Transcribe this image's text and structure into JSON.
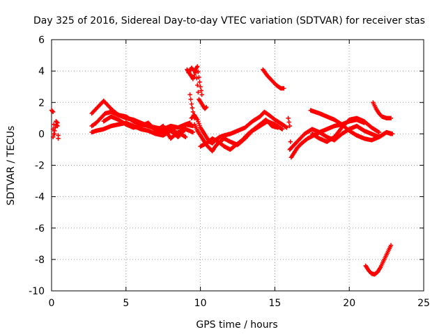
{
  "chart_data": {
    "type": "scatter",
    "title": "Day 325 of 2016, Sidereal Day-to-day VTEC variation (SDTVAR) for receiver stas",
    "xlabel": "GPS time / hours",
    "ylabel": "SDTVAR / TECUs",
    "xlim": [
      0,
      25
    ],
    "ylim": [
      -10,
      6
    ],
    "xticks": [
      0,
      5,
      10,
      15,
      20,
      25
    ],
    "yticks": [
      -10,
      -8,
      -6,
      -4,
      -2,
      0,
      2,
      4,
      6
    ],
    "xtick_labels": [
      "0",
      "5",
      "10",
      "15",
      "20",
      "25"
    ],
    "ytick_labels": [
      "-10",
      "-8",
      "-6",
      "-4",
      "-2",
      "0",
      "2",
      "4",
      "6"
    ],
    "grid": true,
    "marker": "plus",
    "color": "#ff0000",
    "series": [
      {
        "name": "s1",
        "x": [
          0.0,
          0.05,
          0.1
        ],
        "y": [
          1.5,
          1.45,
          1.4
        ]
      },
      {
        "name": "s2",
        "x": [
          0.1,
          0.15,
          0.2,
          0.3,
          0.4,
          0.45
        ],
        "y": [
          0.3,
          0.6,
          0.0,
          0.8,
          0.7,
          -0.3
        ]
      },
      {
        "name": "s3",
        "x": [
          0.1,
          0.2,
          0.3,
          0.4,
          0.45
        ],
        "y": [
          -0.2,
          0.2,
          0.6,
          0.5,
          -0.1
        ]
      },
      {
        "name": "s4",
        "x": [
          2.7,
          3.0,
          3.3,
          3.5,
          3.8,
          4.1,
          4.5,
          5.0,
          5.5,
          6.0,
          6.5,
          7.0,
          7.5,
          8.0,
          8.5,
          9.0,
          9.3
        ],
        "y": [
          1.3,
          1.6,
          1.9,
          2.1,
          1.8,
          1.5,
          1.2,
          1.0,
          0.9,
          0.7,
          0.5,
          0.4,
          0.3,
          0.5,
          0.4,
          0.6,
          0.7
        ]
      },
      {
        "name": "s5",
        "x": [
          2.7,
          3.0,
          3.3,
          3.6,
          4.0,
          4.5,
          5.0,
          5.5,
          6.0,
          6.5,
          7.0,
          7.5,
          8.0,
          8.5,
          9.0,
          9.5
        ],
        "y": [
          0.5,
          0.7,
          1.0,
          1.3,
          1.4,
          1.2,
          1.1,
          0.8,
          0.6,
          0.5,
          0.3,
          0.1,
          0.4,
          0.0,
          0.6,
          0.5
        ]
      },
      {
        "name": "s6",
        "x": [
          2.7,
          3.0,
          3.5,
          4.0,
          4.5,
          5.0,
          5.5,
          6.0,
          6.5,
          7.0,
          7.5,
          8.0,
          8.5,
          9.0,
          9.5
        ],
        "y": [
          0.1,
          0.2,
          0.3,
          0.5,
          0.6,
          0.7,
          0.5,
          0.3,
          0.2,
          0.0,
          -0.1,
          0.2,
          -0.2,
          0.3,
          0.1
        ]
      },
      {
        "name": "s7",
        "x": [
          3.5,
          4.0,
          4.5,
          5.0,
          5.5,
          6.0,
          6.5,
          7.0,
          7.5,
          8.0,
          8.5,
          9.0
        ],
        "y": [
          0.8,
          1.1,
          0.9,
          0.6,
          0.4,
          0.5,
          0.7,
          0.2,
          0.5,
          -0.3,
          0.1,
          -0.2
        ]
      },
      {
        "name": "s8",
        "x": [
          9.2,
          9.4,
          9.6,
          9.8,
          9.9,
          10.0,
          10.1
        ],
        "y": [
          3.9,
          4.2,
          4.0,
          4.3,
          3.6,
          3.0,
          2.5
        ]
      },
      {
        "name": "s9",
        "x": [
          9.1,
          9.3,
          9.5,
          9.7,
          9.9,
          10.1,
          10.3,
          10.4
        ],
        "y": [
          4.1,
          3.8,
          3.5,
          4.0,
          2.2,
          1.9,
          1.6,
          1.7
        ]
      },
      {
        "name": "s10",
        "x": [
          9.3,
          9.4,
          9.5,
          9.6
        ],
        "y": [
          2.5,
          1.9,
          1.4,
          1.0
        ]
      },
      {
        "name": "s11",
        "x": [
          9.4,
          9.6,
          9.8,
          10.0,
          10.2,
          10.4,
          10.6,
          10.8,
          11.0,
          11.3,
          11.6,
          12.0,
          12.5,
          13.0,
          13.5,
          14.0,
          14.3,
          14.6,
          15.0,
          15.5,
          15.8
        ],
        "y": [
          1.0,
          1.2,
          0.9,
          0.4,
          0.1,
          -0.2,
          -0.5,
          -0.6,
          -0.4,
          -0.2,
          -0.1,
          0.0,
          0.2,
          0.4,
          0.8,
          1.1,
          1.4,
          1.2,
          0.9,
          0.6,
          0.4
        ]
      },
      {
        "name": "s12",
        "x": [
          9.6,
          9.8,
          10.0,
          10.2,
          10.4,
          10.6,
          10.8,
          11.0,
          11.3,
          11.6,
          12.0,
          12.5,
          13.0,
          13.5,
          14.0,
          14.5,
          15.0,
          15.5
        ],
        "y": [
          0.6,
          0.2,
          -0.1,
          -0.4,
          -0.7,
          -0.9,
          -1.1,
          -0.8,
          -0.5,
          -0.3,
          -0.5,
          -0.7,
          -0.3,
          0.2,
          0.5,
          0.8,
          0.6,
          0.3
        ]
      },
      {
        "name": "s13",
        "x": [
          10.0,
          10.4,
          10.8,
          11.2,
          11.6,
          12.0,
          12.4,
          12.8,
          13.2,
          13.6,
          14.0,
          14.4,
          14.8,
          15.2
        ],
        "y": [
          -0.8,
          -0.6,
          -0.3,
          -0.5,
          -0.8,
          -1.0,
          -0.7,
          -0.4,
          0.0,
          0.3,
          0.6,
          0.9,
          0.5,
          0.4
        ]
      },
      {
        "name": "s14",
        "x": [
          14.2,
          14.5,
          14.8,
          15.1,
          15.4,
          15.6
        ],
        "y": [
          4.1,
          3.7,
          3.4,
          3.1,
          2.9,
          2.9
        ]
      },
      {
        "name": "s15",
        "x": [
          15.9,
          16.0,
          16.1,
          16.3,
          16.5,
          16.8,
          17.2,
          17.6,
          18.0,
          18.5,
          19.0,
          19.5,
          20.0,
          20.5,
          21.0
        ],
        "y": [
          1.0,
          0.5,
          -1.5,
          -1.2,
          -0.9,
          -0.6,
          -0.3,
          -0.1,
          0.1,
          0.3,
          0.5,
          0.6,
          0.8,
          0.9,
          0.7
        ]
      },
      {
        "name": "s16",
        "x": [
          16.0,
          16.2,
          16.5,
          17.0,
          17.5,
          18.0,
          18.5,
          19.0,
          19.5,
          20.0,
          20.5,
          21.0,
          21.5,
          22.0,
          22.5,
          22.8
        ],
        "y": [
          -1.0,
          -0.8,
          -0.5,
          0.0,
          0.3,
          0.1,
          -0.2,
          -0.4,
          0.0,
          0.3,
          0.5,
          0.2,
          0.0,
          -0.2,
          0.1,
          0.0
        ]
      },
      {
        "name": "s17",
        "x": [
          17.4,
          18.0,
          18.5,
          19.0,
          19.5,
          20.0,
          20.5,
          21.0,
          21.5,
          22.0,
          22.5,
          22.9
        ],
        "y": [
          1.5,
          1.3,
          1.1,
          0.9,
          0.6,
          0.2,
          -0.1,
          -0.3,
          -0.4,
          -0.2,
          0.1,
          0.0
        ]
      },
      {
        "name": "s18",
        "x": [
          17.5,
          18.0,
          18.5,
          19.0,
          19.5,
          20.0,
          20.5,
          21.0,
          21.5,
          22.0
        ],
        "y": [
          0.0,
          -0.3,
          -0.5,
          -0.2,
          0.4,
          0.9,
          1.0,
          0.8,
          0.4,
          0.1
        ]
      },
      {
        "name": "s19",
        "x": [
          21.6,
          21.8,
          22.0,
          22.2,
          22.5,
          22.8
        ],
        "y": [
          2.0,
          1.6,
          1.3,
          1.1,
          1.0,
          1.0
        ]
      },
      {
        "name": "s20",
        "x": [
          21.1,
          21.3,
          21.5,
          21.7,
          21.9,
          22.1,
          22.3,
          22.5,
          22.7,
          22.8
        ],
        "y": [
          -8.4,
          -8.7,
          -8.9,
          -8.95,
          -8.8,
          -8.5,
          -8.1,
          -7.7,
          -7.3,
          -7.1
        ]
      }
    ]
  }
}
